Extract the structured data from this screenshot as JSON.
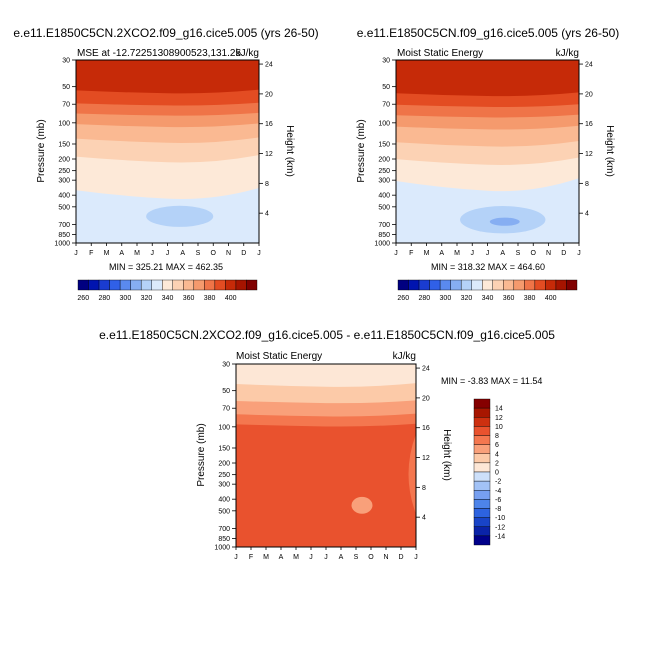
{
  "chart_data": [
    {
      "type": "heatmap",
      "title": "e.e11.E1850C5CN.2XCO2.f09_g16.cice5.005 (yrs 26-50)",
      "subtitle_left": "MSE at -12.72251308900523,131.25",
      "subtitle_right": "kJ/kg",
      "xlabel": "",
      "ylabel": "Pressure (mb)",
      "ylabel_right": "Height (km)",
      "x_ticks": [
        "J",
        "F",
        "M",
        "A",
        "M",
        "J",
        "J",
        "A",
        "S",
        "O",
        "N",
        "D",
        "J"
      ],
      "y_ticks": [
        "30",
        "50",
        "70",
        "100",
        "150",
        "200",
        "250",
        "300",
        "400",
        "500",
        "700",
        "850",
        "1000"
      ],
      "y_ticks_right": [
        "24",
        "20",
        "16",
        "12",
        "8",
        "4"
      ],
      "stats": "MIN = 325.21 MAX = 462.35",
      "colorbar_labels": [
        "260",
        "280",
        "300",
        "320",
        "340",
        "360",
        "380",
        "400"
      ],
      "bands": [
        {
          "p": 30,
          "edge": 0,
          "v": 420
        },
        {
          "p": 55,
          "edge": 4,
          "v": 400
        },
        {
          "p": 70,
          "edge": 3,
          "v": 390
        },
        {
          "p": 85,
          "edge": 3,
          "v": 380
        },
        {
          "p": 105,
          "edge": 4,
          "v": 370
        },
        {
          "p": 140,
          "edge": 6,
          "v": 360
        },
        {
          "p": 200,
          "edge": 8,
          "v": 350
        },
        {
          "p": 390,
          "edge": 12,
          "v": 340
        },
        {
          "p": 560,
          "edge": 30,
          "v": 330
        }
      ],
      "blob": {
        "v": 320,
        "cx": 6.8,
        "cp": 600,
        "rx": 2.2,
        "rp": 80
      }
    },
    {
      "type": "heatmap",
      "title": "e.e11.E1850C5CN.f09_g16.cice5.005 (yrs 26-50)",
      "subtitle_left": "Moist Static Energy",
      "subtitle_right": "kJ/kg",
      "xlabel": "",
      "ylabel": "Pressure (mb)",
      "ylabel_right": "Height (km)",
      "x_ticks": [
        "J",
        "F",
        "M",
        "A",
        "M",
        "J",
        "J",
        "A",
        "S",
        "O",
        "N",
        "D",
        "J"
      ],
      "y_ticks": [
        "30",
        "50",
        "70",
        "100",
        "150",
        "200",
        "250",
        "300",
        "400",
        "500",
        "700",
        "850",
        "1000"
      ],
      "y_ticks_right": [
        "24",
        "20",
        "16",
        "12",
        "8",
        "4"
      ],
      "stats": "MIN = 318.32 MAX = 464.60",
      "colorbar_labels": [
        "260",
        "280",
        "300",
        "320",
        "340",
        "360",
        "380",
        "400"
      ],
      "bands": [
        {
          "p": 30,
          "edge": 0,
          "v": 420
        },
        {
          "p": 58,
          "edge": 4,
          "v": 400
        },
        {
          "p": 72,
          "edge": 3,
          "v": 390
        },
        {
          "p": 88,
          "edge": 3,
          "v": 380
        },
        {
          "p": 110,
          "edge": 4,
          "v": 370
        },
        {
          "p": 150,
          "edge": 6,
          "v": 360
        },
        {
          "p": 210,
          "edge": 8,
          "v": 350
        },
        {
          "p": 330,
          "edge": 14,
          "v": 340
        },
        {
          "p": 420,
          "edge": 20,
          "v": 330
        }
      ],
      "blob": {
        "v": 320,
        "cx": 7.0,
        "cp": 640,
        "rx": 2.8,
        "rp": 130
      }
    },
    {
      "type": "heatmap",
      "title": "e.e11.E1850C5CN.2XCO2.f09_g16.cice5.005 - e.e11.E1850C5CN.f09_g16.cice5.005",
      "subtitle_left": "Moist Static Energy",
      "subtitle_right": "kJ/kg",
      "xlabel": "",
      "ylabel": "Pressure (mb)",
      "ylabel_right": "Height (km)",
      "x_ticks": [
        "J",
        "F",
        "M",
        "A",
        "M",
        "J",
        "J",
        "A",
        "S",
        "O",
        "N",
        "D",
        "J"
      ],
      "y_ticks": [
        "30",
        "50",
        "70",
        "100",
        "150",
        "200",
        "250",
        "300",
        "400",
        "500",
        "700",
        "850",
        "1000"
      ],
      "y_ticks_right": [
        "24",
        "20",
        "16",
        "12",
        "8",
        "4"
      ],
      "stats": "MIN =  -3.83 MAX =  11.54",
      "colorbar_labels": [
        "14",
        "12",
        "10",
        "8",
        "6",
        "4",
        "2",
        "0",
        "-2",
        "-4",
        "-6",
        "-8",
        "-10",
        "-12",
        "-14"
      ],
      "bands": [
        {
          "p": 30,
          "edge": 0,
          "v": -1
        },
        {
          "p": 45,
          "edge": 4,
          "v": 1
        },
        {
          "p": 62,
          "edge": 3,
          "v": 3
        },
        {
          "p": 80,
          "edge": 3,
          "v": 5
        },
        {
          "p": 97,
          "edge": 3,
          "v": 7
        },
        {
          "p": 130,
          "edge": 6,
          "v": 9
        }
      ],
      "blob": {
        "v": 5,
        "cx": 8.4,
        "cp": 450,
        "rx": 0.7,
        "rp": 40
      }
    }
  ]
}
